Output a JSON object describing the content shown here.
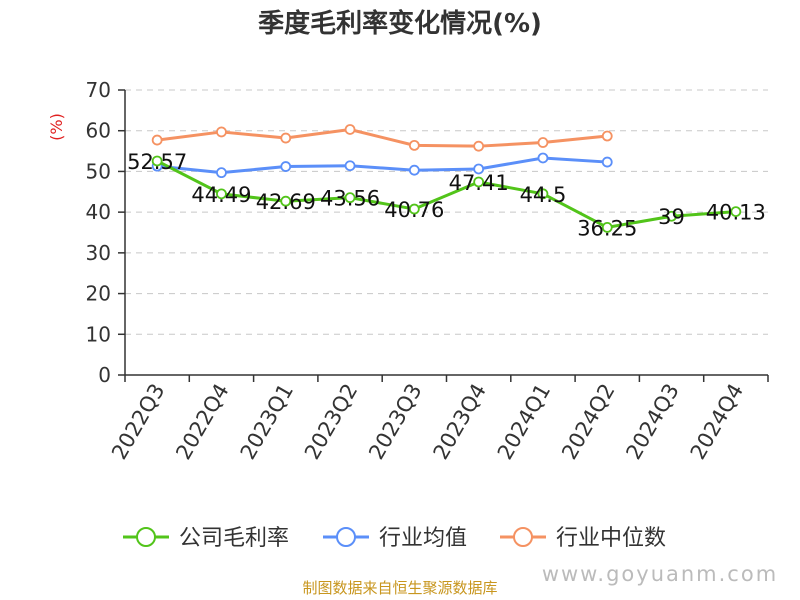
{
  "chart_data": {
    "type": "line",
    "title": "季度毛利率变化情况(%)",
    "ylabel": "(%)",
    "xlabel": "",
    "categories": [
      "2022Q3",
      "2022Q4",
      "2023Q1",
      "2023Q2",
      "2023Q3",
      "2023Q4",
      "2024Q1",
      "2024Q2",
      "2024Q3",
      "2024Q4"
    ],
    "ylim": [
      0,
      70
    ],
    "yticks": [
      0,
      10,
      20,
      30,
      40,
      50,
      60,
      70
    ],
    "grid": "horizontal dashed",
    "legend_position": "bottom",
    "series": [
      {
        "name": "公司毛利率",
        "color": "#52c41a",
        "values": [
          52.57,
          44.49,
          42.69,
          43.56,
          40.76,
          47.41,
          44.5,
          36.25,
          39,
          40.13
        ],
        "labels": [
          "52.57",
          "44.49",
          "42.69",
          "43.56",
          "40.76",
          "47.41",
          "44.5",
          "36.25",
          "39",
          "40.13"
        ]
      },
      {
        "name": "行业均值",
        "color": "#5b8ff9",
        "values": [
          51.3,
          49.7,
          51.2,
          51.4,
          50.3,
          50.6,
          53.3,
          52.3,
          null,
          null
        ]
      },
      {
        "name": "行业中位数",
        "color": "#f59262",
        "values": [
          57.7,
          59.7,
          58.2,
          60.3,
          56.4,
          56.2,
          57.1,
          58.7,
          null,
          null
        ]
      }
    ]
  },
  "footer": {
    "source": "制图数据来自恒生聚源数据库",
    "watermark": "www.goyuanm.com"
  }
}
